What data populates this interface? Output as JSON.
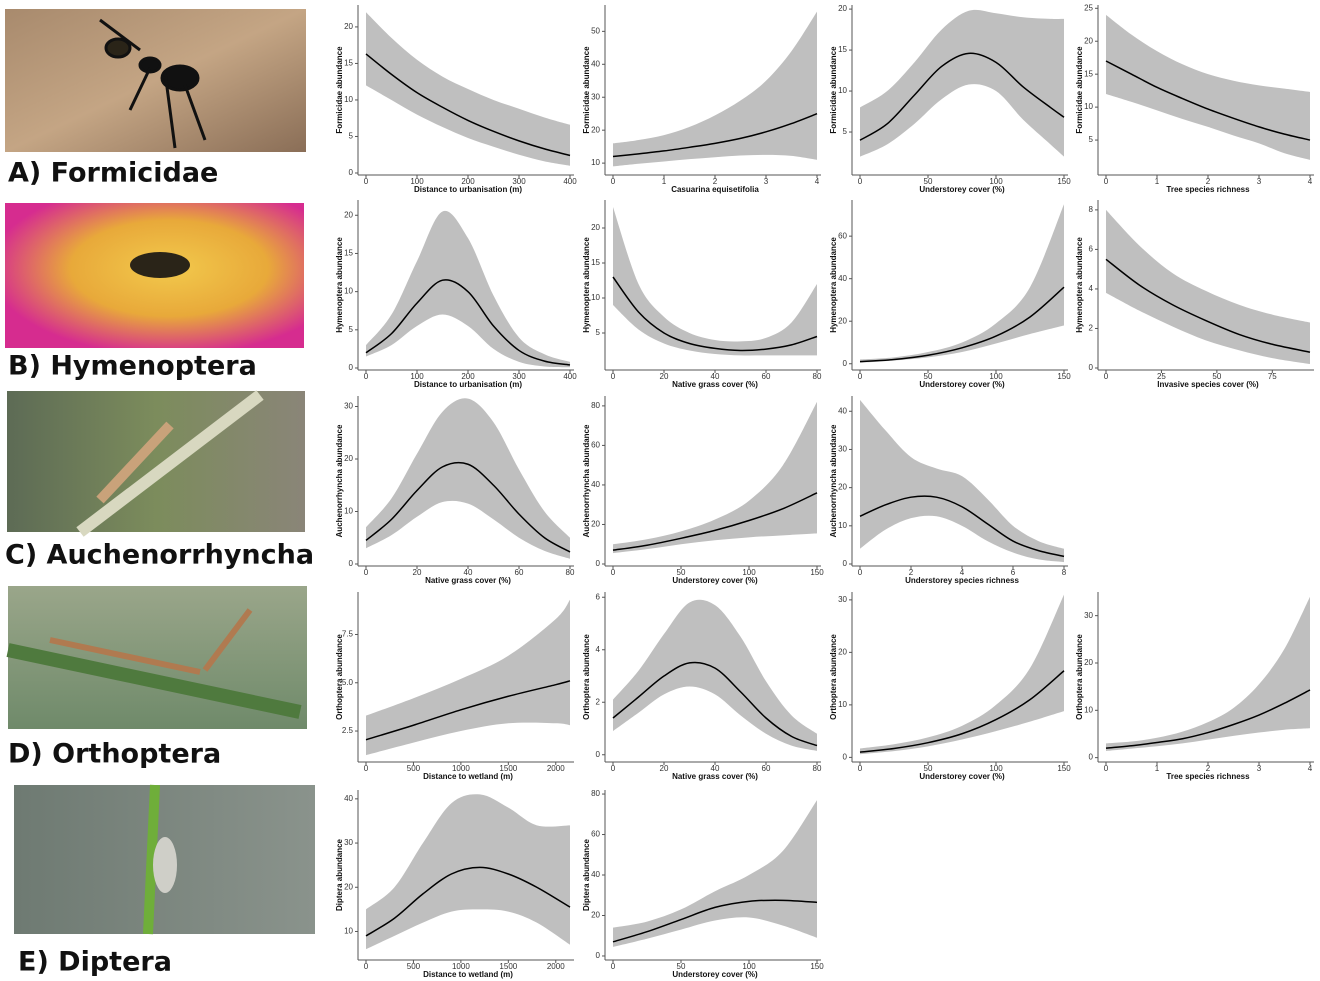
{
  "rows": [
    "A) Formicidae",
    "B) Hymenoptera",
    "C) Auchenorrhyncha",
    "D) Orthoptera",
    "E) Diptera"
  ],
  "chart_data": [
    {
      "type": "line",
      "xlabel": "Distance to urbanisation (m)",
      "ylabel": "Formicidae abundance",
      "xlim": [
        0,
        400
      ],
      "xticks": [
        0,
        100,
        200,
        300,
        400
      ],
      "ylim": [
        0,
        23
      ],
      "yticks": [
        0,
        5,
        10,
        15,
        20
      ],
      "x": [
        0,
        50,
        100,
        150,
        200,
        250,
        300,
        350,
        400
      ],
      "values": [
        16.3,
        13.5,
        11,
        9,
        7.2,
        5.7,
        4.4,
        3.3,
        2.4
      ],
      "lower": [
        12,
        10,
        8,
        6.3,
        4.8,
        3.6,
        2.5,
        1.6,
        1
      ],
      "upper": [
        22,
        18.5,
        15.5,
        13.2,
        11.5,
        10,
        8.8,
        7.6,
        6.6
      ]
    },
    {
      "type": "line",
      "xlabel": "Casuarina equisetifolia",
      "ylabel": "Formicidae abundance",
      "xlim": [
        0,
        4
      ],
      "xticks": [
        0,
        1,
        2,
        3,
        4
      ],
      "ylim": [
        7,
        58
      ],
      "yticks": [
        10,
        20,
        30,
        40,
        50
      ],
      "x": [
        0,
        0.5,
        1,
        1.5,
        2,
        2.5,
        3,
        3.5,
        4
      ],
      "values": [
        12,
        12.8,
        13.7,
        14.8,
        16,
        17.5,
        19.5,
        22,
        25
      ],
      "lower": [
        9,
        9.8,
        10.5,
        11.2,
        11.8,
        12.3,
        12.5,
        12.2,
        11
      ],
      "upper": [
        16,
        17,
        18.5,
        21,
        24.5,
        29,
        35,
        44,
        56
      ]
    },
    {
      "type": "line",
      "xlabel": "Understorey cover (%)",
      "ylabel": "Formicidae abundance",
      "xlim": [
        0,
        150
      ],
      "xticks": [
        0,
        50,
        100,
        150
      ],
      "ylim": [
        0,
        20.5
      ],
      "yticks": [
        5,
        10,
        15,
        20
      ],
      "x": [
        0,
        20,
        40,
        60,
        80,
        100,
        120,
        140,
        150
      ],
      "values": [
        4,
        6,
        9.5,
        13,
        14.6,
        13.5,
        10.5,
        8,
        6.8
      ],
      "lower": [
        2,
        3.5,
        6,
        9,
        10.8,
        10,
        6.5,
        3.5,
        2
      ],
      "upper": [
        8,
        10,
        13.5,
        17.5,
        19.8,
        19.5,
        19,
        18.8,
        18.8
      ]
    },
    {
      "type": "line",
      "xlabel": "Tree species richness",
      "ylabel": "Formicidae abundance",
      "xlim": [
        0,
        4
      ],
      "xticks": [
        0,
        1,
        2,
        3,
        4
      ],
      "ylim": [
        0,
        25.5
      ],
      "yticks": [
        5,
        10,
        15,
        20,
        25
      ],
      "x": [
        0,
        0.5,
        1,
        1.5,
        2,
        2.5,
        3,
        3.5,
        4
      ],
      "values": [
        17,
        15,
        13,
        11.3,
        9.7,
        8.3,
        7,
        5.9,
        5
      ],
      "lower": [
        12,
        10.8,
        9.5,
        8.2,
        7,
        5.7,
        4.5,
        3,
        2
      ],
      "upper": [
        24,
        21,
        18.5,
        16.5,
        15,
        14,
        13.3,
        12.8,
        12.3
      ]
    },
    {
      "type": "line",
      "xlabel": "Distance to urbanisation (m)",
      "ylabel": "Hymenoptera abundance",
      "xlim": [
        0,
        400
      ],
      "xticks": [
        0,
        100,
        200,
        300,
        400
      ],
      "ylim": [
        0,
        22
      ],
      "yticks": [
        0,
        5,
        10,
        15,
        20
      ],
      "x": [
        0,
        50,
        100,
        150,
        200,
        250,
        300,
        350,
        400
      ],
      "values": [
        2,
        4.5,
        8.5,
        11.5,
        10,
        5.5,
        2.3,
        0.9,
        0.4
      ],
      "lower": [
        1.5,
        3,
        5.5,
        7,
        5.5,
        2.5,
        0.8,
        0.2,
        0.1
      ],
      "upper": [
        3,
        7,
        14,
        20.5,
        17,
        9.5,
        4,
        1.8,
        0.8
      ]
    },
    {
      "type": "line",
      "xlabel": "Native grass cover (%)",
      "ylabel": "Hymenoptera abundance",
      "xlim": [
        0,
        80
      ],
      "xticks": [
        0,
        20,
        40,
        60,
        80
      ],
      "ylim": [
        0,
        24
      ],
      "yticks": [
        5,
        10,
        15,
        20
      ],
      "x": [
        0,
        10,
        20,
        30,
        40,
        50,
        60,
        70,
        80
      ],
      "values": [
        13,
        8,
        5,
        3.5,
        2.8,
        2.5,
        2.7,
        3.3,
        4.5
      ],
      "lower": [
        9,
        5.5,
        3.5,
        2.5,
        2,
        1.8,
        1.8,
        1.8,
        1.8
      ],
      "upper": [
        23,
        12,
        7.3,
        5,
        4,
        3.8,
        4.3,
        6.5,
        12
      ]
    },
    {
      "type": "line",
      "xlabel": "Understorey cover (%)",
      "ylabel": "Hymenoptera abundance",
      "xlim": [
        0,
        150
      ],
      "xticks": [
        0,
        50,
        100,
        150
      ],
      "ylim": [
        -2,
        77
      ],
      "yticks": [
        0,
        20,
        40,
        60
      ],
      "x": [
        0,
        25,
        50,
        75,
        100,
        125,
        150
      ],
      "values": [
        1,
        2,
        4,
        7.5,
        13,
        22,
        36
      ],
      "lower": [
        0.5,
        1.5,
        3,
        5.5,
        9.5,
        14,
        18
      ],
      "upper": [
        2,
        3,
        5.5,
        10,
        19,
        36,
        75
      ]
    },
    {
      "type": "line",
      "xlabel": "Invasive species cover (%)",
      "ylabel": "Hymenoptera abundance",
      "xlim": [
        0,
        92
      ],
      "xticks": [
        0,
        25,
        50,
        75
      ],
      "ylim": [
        0,
        8.5
      ],
      "yticks": [
        0,
        2,
        4,
        6,
        8
      ],
      "x": [
        0,
        15,
        30,
        45,
        60,
        75,
        92
      ],
      "values": [
        5.5,
        4.2,
        3.2,
        2.4,
        1.7,
        1.2,
        0.8
      ],
      "lower": [
        3.8,
        2.9,
        2.1,
        1.4,
        0.9,
        0.5,
        0.2
      ],
      "upper": [
        8,
        6.2,
        4.8,
        3.9,
        3.2,
        2.7,
        2.3
      ]
    },
    {
      "type": "line",
      "xlabel": "Native grass cover (%)",
      "ylabel": "Auchenorrhyncha abundance",
      "xlim": [
        0,
        80
      ],
      "xticks": [
        0,
        20,
        40,
        60,
        80
      ],
      "ylim": [
        0,
        32
      ],
      "yticks": [
        0,
        10,
        20,
        30
      ],
      "x": [
        0,
        10,
        20,
        30,
        40,
        50,
        60,
        70,
        80
      ],
      "values": [
        4.5,
        8.5,
        14,
        18.5,
        19,
        15,
        9.5,
        5,
        2.3
      ],
      "lower": [
        3,
        5.5,
        9,
        11.8,
        11.5,
        8.5,
        5,
        2.5,
        1
      ],
      "upper": [
        7,
        12.5,
        21,
        29,
        31.5,
        27,
        18,
        10,
        5
      ]
    },
    {
      "type": "line",
      "xlabel": "Understorey cover (%)",
      "ylabel": "Auchenorrhyncha abundance",
      "xlim": [
        0,
        150
      ],
      "xticks": [
        0,
        50,
        100,
        150
      ],
      "ylim": [
        0,
        85
      ],
      "yticks": [
        0,
        20,
        40,
        60,
        80
      ],
      "x": [
        0,
        25,
        50,
        75,
        100,
        125,
        150
      ],
      "values": [
        7,
        9.5,
        13,
        17,
        22,
        28,
        36
      ],
      "lower": [
        5.5,
        7.5,
        10,
        12,
        13.5,
        14.5,
        15.5
      ],
      "upper": [
        10,
        12.5,
        16.5,
        22.5,
        32,
        50,
        82
      ]
    },
    {
      "type": "line",
      "xlabel": "Understorey species richness",
      "ylabel": "Auchenorrhyncha abundance",
      "xlim": [
        0,
        8
      ],
      "xticks": [
        0,
        2,
        4,
        6,
        8
      ],
      "ylim": [
        0,
        44
      ],
      "yticks": [
        0,
        10,
        20,
        30,
        40
      ],
      "x": [
        0,
        1,
        2,
        3,
        4,
        5,
        6,
        7,
        8
      ],
      "values": [
        12.5,
        15.5,
        17.5,
        17.5,
        15,
        10.5,
        6,
        3.5,
        2
      ],
      "lower": [
        4,
        9,
        12,
        12.5,
        10,
        6,
        3,
        1.2,
        0.5
      ],
      "upper": [
        43,
        35,
        28,
        25,
        23,
        17,
        10,
        6,
        4
      ]
    },
    {
      "type": "line",
      "xlabel": "Distance to wetland (m)",
      "ylabel": "Orthoptera abundance",
      "xlim": [
        0,
        2150
      ],
      "xticks": [
        0,
        500,
        1000,
        1500,
        2000
      ],
      "ylim": [
        1,
        9.7
      ],
      "yticks": [
        2.5,
        {
          "value": 5,
          "label": "5.0"
        },
        7.5
      ],
      "x": [
        0,
        500,
        1000,
        1500,
        2000,
        2150
      ],
      "values": [
        2.05,
        2.8,
        3.6,
        4.3,
        4.9,
        5.1
      ],
      "lower": [
        1.25,
        1.9,
        2.5,
        2.9,
        2.9,
        2.8
      ],
      "upper": [
        3.3,
        4.2,
        5.2,
        6.4,
        8.3,
        9.3
      ]
    },
    {
      "type": "line",
      "xlabel": "Native grass cover (%)",
      "ylabel": "Orthoptera abundance",
      "xlim": [
        0,
        80
      ],
      "xticks": [
        0,
        20,
        40,
        60,
        80
      ],
      "ylim": [
        -0.2,
        6.2
      ],
      "yticks": [
        0,
        2,
        4,
        6
      ],
      "x": [
        0,
        10,
        20,
        30,
        40,
        50,
        60,
        70,
        80
      ],
      "values": [
        1.4,
        2.2,
        3,
        3.5,
        3.3,
        2.4,
        1.4,
        0.7,
        0.35
      ],
      "lower": [
        0.9,
        1.6,
        2.3,
        2.6,
        2.3,
        1.5,
        0.8,
        0.35,
        0.15
      ],
      "upper": [
        2.1,
        3.2,
        4.6,
        5.8,
        5.7,
        4.5,
        2.8,
        1.5,
        0.8
      ]
    },
    {
      "type": "line",
      "xlabel": "Understorey cover (%)",
      "ylabel": "Orthoptera abundance",
      "xlim": [
        0,
        150
      ],
      "xticks": [
        0,
        50,
        100,
        150
      ],
      "ylim": [
        -0.5,
        31.5
      ],
      "yticks": [
        0,
        10,
        20,
        30
      ],
      "x": [
        0,
        25,
        50,
        75,
        100,
        125,
        150
      ],
      "values": [
        1,
        1.7,
        2.8,
        4.5,
        7.2,
        11,
        16.5
      ],
      "lower": [
        0.6,
        1.2,
        2.1,
        3.4,
        5,
        6.8,
        8.8
      ],
      "upper": [
        1.7,
        2.5,
        3.8,
        6,
        10,
        17,
        31
      ]
    },
    {
      "type": "line",
      "xlabel": "Tree species richness",
      "ylabel": "Orthoptera abundance",
      "xlim": [
        0,
        4
      ],
      "xticks": [
        0,
        1,
        2,
        3,
        4
      ],
      "ylim": [
        -0.5,
        35
      ],
      "yticks": [
        0,
        10,
        20,
        30
      ],
      "x": [
        0,
        0.5,
        1,
        1.5,
        2,
        2.5,
        3,
        3.5,
        4
      ],
      "values": [
        2,
        2.5,
        3.2,
        4,
        5.3,
        7,
        9,
        11.5,
        14.3
      ],
      "lower": [
        1.4,
        1.9,
        2.4,
        3,
        3.8,
        4.6,
        5.3,
        5.9,
        6.2
      ],
      "upper": [
        3,
        3.4,
        4.2,
        5.5,
        7.5,
        10.5,
        15.5,
        23,
        34
      ]
    },
    {
      "type": "line",
      "xlabel": "Distance to wetland (m)",
      "ylabel": "Diptera abundance",
      "xlim": [
        0,
        2150
      ],
      "xticks": [
        0,
        500,
        1000,
        1500,
        2000
      ],
      "ylim": [
        4,
        42
      ],
      "yticks": [
        10,
        20,
        30,
        40
      ],
      "x": [
        0,
        300,
        600,
        900,
        1200,
        1500,
        1800,
        2150
      ],
      "values": [
        9,
        13,
        18.5,
        23,
        24.5,
        23,
        20,
        15.5
      ],
      "lower": [
        6,
        9,
        12,
        14.5,
        15,
        14.5,
        12,
        7
      ],
      "upper": [
        15,
        20,
        30,
        39,
        41,
        38,
        34,
        34
      ]
    },
    {
      "type": "line",
      "xlabel": "Understorey cover (%)",
      "ylabel": "Diptera abundance",
      "xlim": [
        0,
        150
      ],
      "xticks": [
        0,
        50,
        100,
        150
      ],
      "ylim": [
        -1,
        82
      ],
      "yticks": [
        0,
        20,
        40,
        60,
        80
      ],
      "x": [
        0,
        25,
        50,
        75,
        100,
        125,
        150
      ],
      "values": [
        7,
        12,
        18,
        24,
        27,
        27.5,
        26.5
      ],
      "lower": [
        4.5,
        8.5,
        13,
        17.5,
        19,
        15,
        9
      ],
      "upper": [
        14,
        17,
        23,
        32,
        40,
        52,
        77
      ]
    }
  ]
}
